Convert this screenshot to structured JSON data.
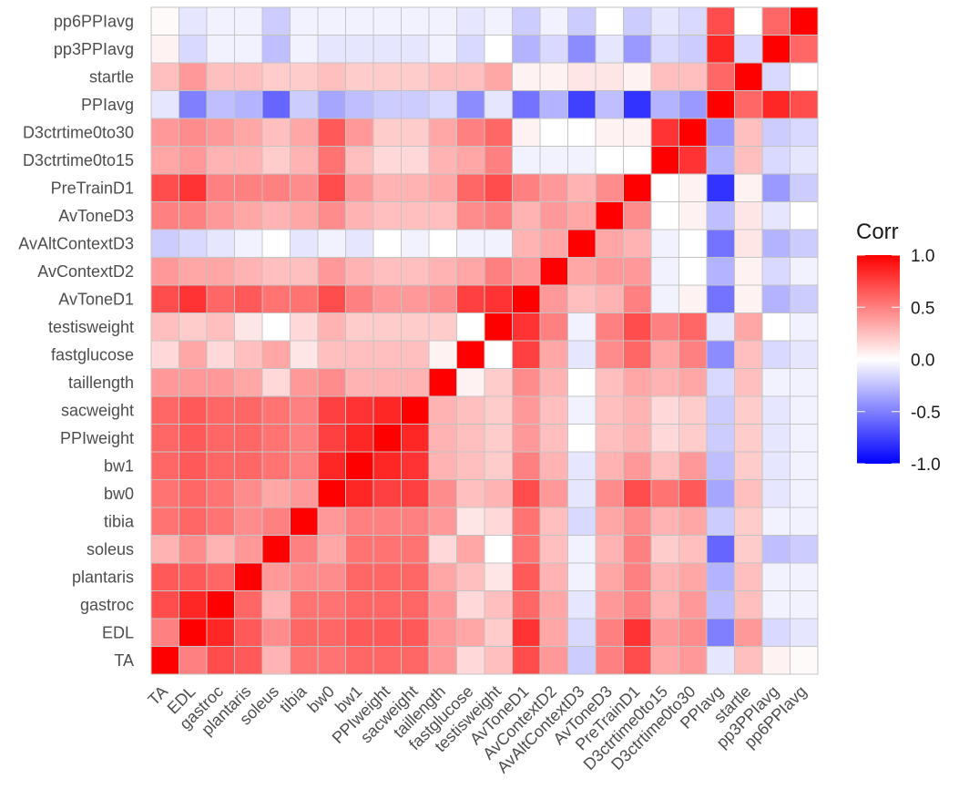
{
  "chart_data": {
    "type": "heatmap",
    "title": "",
    "xlabel": "",
    "ylabel": "",
    "variables": [
      "TA",
      "EDL",
      "gastroc",
      "plantaris",
      "soleus",
      "tibia",
      "bw0",
      "bw1",
      "PPIweight",
      "sacweight",
      "taillength",
      "fastglucose",
      "testisweight",
      "AvToneD1",
      "AvContextD2",
      "AvAltContextD3",
      "AvToneD3",
      "PreTrainD1",
      "D3ctrtime0to15",
      "D3ctrtime0to30",
      "PPIavg",
      "startle",
      "pp3PPIavg",
      "pp6PPIavg"
    ],
    "values": [
      [
        1.0,
        0.5,
        0.7,
        0.65,
        0.3,
        0.55,
        0.55,
        0.6,
        0.6,
        0.6,
        0.4,
        0.15,
        0.25,
        0.7,
        0.4,
        -0.2,
        0.5,
        0.7,
        0.35,
        0.4,
        -0.1,
        0.25,
        0.05,
        0.02
      ],
      [
        0.5,
        1.0,
        0.85,
        0.65,
        0.45,
        0.6,
        0.6,
        0.65,
        0.65,
        0.65,
        0.4,
        0.35,
        0.2,
        0.8,
        0.35,
        -0.15,
        0.5,
        0.8,
        0.4,
        0.45,
        -0.5,
        0.4,
        -0.15,
        -0.1
      ],
      [
        0.7,
        0.85,
        1.0,
        0.6,
        0.3,
        0.55,
        0.55,
        0.6,
        0.6,
        0.6,
        0.4,
        0.15,
        0.25,
        0.6,
        0.35,
        -0.1,
        0.4,
        0.5,
        0.3,
        0.4,
        -0.25,
        0.25,
        -0.05,
        -0.05
      ],
      [
        0.65,
        0.65,
        0.6,
        1.0,
        0.4,
        0.45,
        0.45,
        0.6,
        0.6,
        0.6,
        0.35,
        0.25,
        0.1,
        0.65,
        0.3,
        -0.05,
        0.35,
        0.5,
        0.3,
        0.35,
        -0.3,
        0.25,
        -0.05,
        -0.05
      ],
      [
        0.3,
        0.45,
        0.3,
        0.4,
        1.0,
        0.5,
        0.35,
        0.55,
        0.55,
        0.55,
        0.15,
        0.35,
        0.0,
        0.55,
        0.25,
        -0.05,
        0.3,
        0.5,
        0.2,
        0.25,
        -0.6,
        0.2,
        -0.25,
        -0.2
      ],
      [
        0.55,
        0.6,
        0.55,
        0.45,
        0.5,
        1.0,
        0.4,
        0.5,
        0.5,
        0.5,
        0.4,
        0.1,
        0.15,
        0.55,
        0.25,
        -0.15,
        0.35,
        0.45,
        0.3,
        0.35,
        -0.2,
        0.2,
        -0.05,
        -0.05
      ],
      [
        0.55,
        0.6,
        0.55,
        0.45,
        0.35,
        0.4,
        1.0,
        0.85,
        0.75,
        0.75,
        0.45,
        0.25,
        0.3,
        0.7,
        0.4,
        -0.1,
        0.45,
        0.7,
        0.55,
        0.65,
        -0.35,
        0.25,
        -0.1,
        -0.05
      ],
      [
        0.6,
        0.65,
        0.6,
        0.6,
        0.55,
        0.5,
        0.85,
        1.0,
        0.85,
        0.8,
        0.3,
        0.25,
        0.2,
        0.5,
        0.3,
        -0.1,
        0.3,
        0.4,
        0.25,
        0.4,
        -0.25,
        0.2,
        -0.1,
        -0.05
      ],
      [
        0.6,
        0.65,
        0.6,
        0.6,
        0.55,
        0.5,
        0.75,
        0.85,
        1.0,
        0.85,
        0.3,
        0.25,
        0.2,
        0.4,
        0.25,
        0.0,
        0.25,
        0.3,
        0.15,
        0.2,
        -0.2,
        0.2,
        -0.1,
        -0.05
      ],
      [
        0.6,
        0.65,
        0.6,
        0.6,
        0.55,
        0.5,
        0.75,
        0.8,
        0.85,
        1.0,
        0.3,
        0.25,
        0.2,
        0.4,
        0.25,
        -0.05,
        0.25,
        0.3,
        0.15,
        0.2,
        -0.2,
        0.2,
        -0.1,
        -0.05
      ],
      [
        0.4,
        0.4,
        0.4,
        0.35,
        0.15,
        0.4,
        0.45,
        0.3,
        0.3,
        0.3,
        1.0,
        0.05,
        0.2,
        0.45,
        0.3,
        0.0,
        0.25,
        0.35,
        0.3,
        0.35,
        -0.15,
        0.25,
        -0.05,
        -0.05
      ],
      [
        0.15,
        0.35,
        0.15,
        0.25,
        0.35,
        0.1,
        0.25,
        0.25,
        0.25,
        0.25,
        0.05,
        1.0,
        0.0,
        0.75,
        0.35,
        -0.1,
        0.45,
        0.6,
        0.35,
        0.5,
        -0.45,
        0.25,
        -0.15,
        -0.1
      ],
      [
        0.25,
        0.2,
        0.25,
        0.1,
        0.0,
        0.15,
        0.3,
        0.2,
        0.2,
        0.2,
        0.2,
        0.0,
        1.0,
        0.8,
        0.5,
        -0.05,
        0.5,
        0.7,
        0.5,
        0.6,
        -0.1,
        0.35,
        0.0,
        -0.05
      ],
      [
        0.7,
        0.8,
        0.6,
        0.65,
        0.55,
        0.55,
        0.7,
        0.5,
        0.4,
        0.4,
        0.45,
        0.75,
        0.8,
        1.0,
        0.4,
        0.25,
        0.3,
        0.5,
        -0.05,
        0.05,
        -0.55,
        0.05,
        -0.3,
        -0.2
      ],
      [
        0.4,
        0.35,
        0.35,
        0.3,
        0.25,
        0.25,
        0.4,
        0.3,
        0.25,
        0.25,
        0.3,
        0.35,
        0.5,
        0.4,
        1.0,
        0.35,
        0.4,
        0.4,
        -0.05,
        0.0,
        -0.3,
        0.05,
        -0.15,
        -0.05
      ],
      [
        -0.2,
        -0.15,
        -0.1,
        -0.05,
        0.0,
        -0.1,
        -0.05,
        -0.1,
        0.0,
        -0.05,
        0.0,
        -0.05,
        -0.05,
        0.3,
        0.35,
        1.0,
        0.35,
        0.3,
        -0.05,
        0.0,
        -0.55,
        0.1,
        -0.3,
        -0.2
      ],
      [
        0.5,
        0.5,
        0.4,
        0.35,
        0.3,
        0.35,
        0.45,
        0.3,
        0.25,
        0.25,
        0.25,
        0.45,
        0.5,
        0.3,
        0.4,
        0.35,
        1.0,
        0.45,
        0.0,
        0.05,
        -0.25,
        0.1,
        -0.1,
        0.0
      ],
      [
        0.7,
        0.8,
        0.5,
        0.5,
        0.5,
        0.45,
        0.7,
        0.4,
        0.3,
        0.3,
        0.35,
        0.6,
        0.7,
        0.5,
        0.4,
        0.3,
        0.45,
        1.0,
        0.0,
        0.05,
        -0.8,
        0.05,
        -0.4,
        -0.2
      ],
      [
        0.35,
        0.4,
        0.3,
        0.3,
        0.2,
        0.3,
        0.55,
        0.25,
        0.15,
        0.15,
        0.3,
        0.35,
        0.5,
        -0.05,
        -0.05,
        -0.05,
        0.0,
        0.0,
        1.0,
        0.8,
        -0.3,
        0.25,
        -0.15,
        -0.1
      ],
      [
        0.4,
        0.45,
        0.4,
        0.35,
        0.25,
        0.35,
        0.65,
        0.4,
        0.2,
        0.2,
        0.35,
        0.5,
        0.6,
        0.05,
        0.0,
        0.0,
        0.05,
        0.05,
        0.8,
        1.0,
        -0.4,
        0.25,
        -0.2,
        -0.15
      ],
      [
        -0.1,
        -0.5,
        -0.25,
        -0.3,
        -0.6,
        -0.2,
        -0.35,
        -0.25,
        -0.2,
        -0.2,
        -0.15,
        -0.45,
        -0.1,
        -0.55,
        -0.3,
        -0.75,
        -0.25,
        -0.8,
        -0.3,
        -0.4,
        1.0,
        0.6,
        0.85,
        0.7
      ],
      [
        0.25,
        0.4,
        0.25,
        0.25,
        0.2,
        0.2,
        0.25,
        0.2,
        0.2,
        0.2,
        0.25,
        0.25,
        0.35,
        0.05,
        0.05,
        0.1,
        0.1,
        0.05,
        0.25,
        0.25,
        0.6,
        1.0,
        -0.15,
        0.0
      ],
      [
        0.05,
        -0.15,
        -0.05,
        -0.05,
        -0.25,
        -0.05,
        -0.1,
        -0.1,
        -0.1,
        -0.1,
        -0.05,
        -0.15,
        0.0,
        -0.3,
        -0.15,
        -0.45,
        -0.1,
        -0.4,
        -0.15,
        -0.2,
        0.85,
        -0.15,
        1.0,
        0.6
      ],
      [
        0.02,
        -0.1,
        -0.05,
        -0.05,
        -0.2,
        -0.05,
        -0.05,
        -0.05,
        -0.05,
        -0.05,
        -0.05,
        -0.1,
        -0.05,
        -0.2,
        -0.05,
        -0.2,
        0.0,
        -0.2,
        -0.1,
        -0.15,
        0.7,
        0.0,
        0.6,
        1.0
      ]
    ],
    "value_range": [
      -1.0,
      1.0
    ],
    "colors": {
      "low": "#0000FF",
      "mid": "#FFFFFF",
      "high": "#FF0000",
      "grid": "#C4C4C4"
    },
    "legend": {
      "title": "Corr",
      "placement": "right",
      "ticks": [
        1.0,
        0.5,
        0.0,
        -0.5,
        -1.0
      ],
      "tick_labels": [
        "1.0",
        "0.5",
        "0.0",
        "-0.5",
        "-1.0"
      ]
    }
  }
}
